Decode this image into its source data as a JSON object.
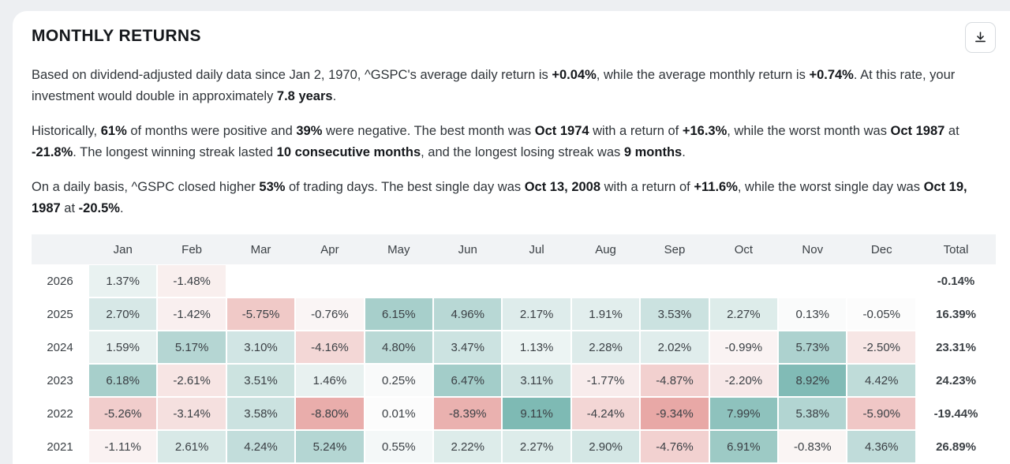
{
  "header": {
    "title": "MONTHLY RETURNS",
    "download_tooltip": "Download"
  },
  "paragraphs": [
    {
      "segments": [
        {
          "t": "Based on dividend-adjusted daily data since Jan 2, 1970, ^GSPC's average daily return is "
        },
        {
          "t": "+0.04%",
          "b": true
        },
        {
          "t": ", while the average monthly return is "
        },
        {
          "t": "+0.74%",
          "b": true
        },
        {
          "t": ". At this rate, your investment would double in approximately "
        },
        {
          "t": "7.8 years",
          "b": true
        },
        {
          "t": "."
        }
      ]
    },
    {
      "segments": [
        {
          "t": "Historically, "
        },
        {
          "t": "61%",
          "b": true
        },
        {
          "t": " of months were positive and "
        },
        {
          "t": "39%",
          "b": true
        },
        {
          "t": " were negative. The best month was "
        },
        {
          "t": "Oct 1974",
          "b": true
        },
        {
          "t": " with a return of "
        },
        {
          "t": "+16.3%",
          "b": true
        },
        {
          "t": ", while the worst month was "
        },
        {
          "t": "Oct 1987",
          "b": true
        },
        {
          "t": " at "
        },
        {
          "t": "-21.8%",
          "b": true
        },
        {
          "t": ". The longest winning streak lasted "
        },
        {
          "t": "10 consecutive months",
          "b": true
        },
        {
          "t": ", and the longest losing streak was "
        },
        {
          "t": "9 months",
          "b": true
        },
        {
          "t": "."
        }
      ]
    },
    {
      "segments": [
        {
          "t": "On a daily basis, ^GSPC closed higher "
        },
        {
          "t": "53%",
          "b": true
        },
        {
          "t": " of trading days. The best single day was "
        },
        {
          "t": "Oct 13, 2008",
          "b": true
        },
        {
          "t": " with a return of "
        },
        {
          "t": "+11.6%",
          "b": true
        },
        {
          "t": ", while the worst single day was "
        },
        {
          "t": "Oct 19, 1987",
          "b": true
        },
        {
          "t": " at "
        },
        {
          "t": "-20.5%",
          "b": true
        },
        {
          "t": "."
        }
      ]
    }
  ],
  "chart_data": {
    "type": "heatmap",
    "title": "Monthly Returns (%)",
    "columns": [
      "Jan",
      "Feb",
      "Mar",
      "Apr",
      "May",
      "Jun",
      "Jul",
      "Aug",
      "Sep",
      "Oct",
      "Nov",
      "Dec",
      "Total"
    ],
    "rows": [
      {
        "year": "2026",
        "values": [
          1.37,
          -1.48,
          null,
          null,
          null,
          null,
          null,
          null,
          null,
          null,
          null,
          null
        ],
        "total": -0.14
      },
      {
        "year": "2025",
        "values": [
          2.7,
          -1.42,
          -5.75,
          -0.76,
          6.15,
          4.96,
          2.17,
          1.91,
          3.53,
          2.27,
          0.13,
          -0.05
        ],
        "total": 16.39
      },
      {
        "year": "2024",
        "values": [
          1.59,
          5.17,
          3.1,
          -4.16,
          4.8,
          3.47,
          1.13,
          2.28,
          2.02,
          -0.99,
          5.73,
          -2.5
        ],
        "total": 23.31
      },
      {
        "year": "2023",
        "values": [
          6.18,
          -2.61,
          3.51,
          1.46,
          0.25,
          6.47,
          3.11,
          -1.77,
          -4.87,
          -2.2,
          8.92,
          4.42
        ],
        "total": 24.23
      },
      {
        "year": "2022",
        "values": [
          -5.26,
          -3.14,
          3.58,
          -8.8,
          0.01,
          -8.39,
          9.11,
          -4.24,
          -9.34,
          7.99,
          5.38,
          -5.9
        ],
        "total": -19.44
      },
      {
        "year": "2021",
        "values": [
          -1.11,
          2.61,
          4.24,
          5.24,
          0.55,
          2.22,
          2.27,
          2.9,
          -4.76,
          6.91,
          -0.83,
          4.36
        ],
        "total": 26.89
      }
    ],
    "partial_next_row_colors": [
      "#8fc2cf",
      "#fcfcfc",
      "#fcfcfc",
      "#fcfcfc",
      "#e2f0ef",
      "#eaf4f3",
      "#d5e8e6",
      "#dcecea",
      "#fcfcfc",
      "#fcfcfc",
      "#fcfcfc",
      "#fcfcfc"
    ]
  },
  "colors": {
    "cell_positive_max": "#79b7b1",
    "cell_negative_max": "#e8a7a5",
    "cell_neutral": "#fcfcfc",
    "scale_max": 9.5,
    "total_positive": "#0aa3a8",
    "total_negative": "#e52527"
  },
  "layout_widths": {
    "year_col": 72,
    "total_col": 101
  }
}
